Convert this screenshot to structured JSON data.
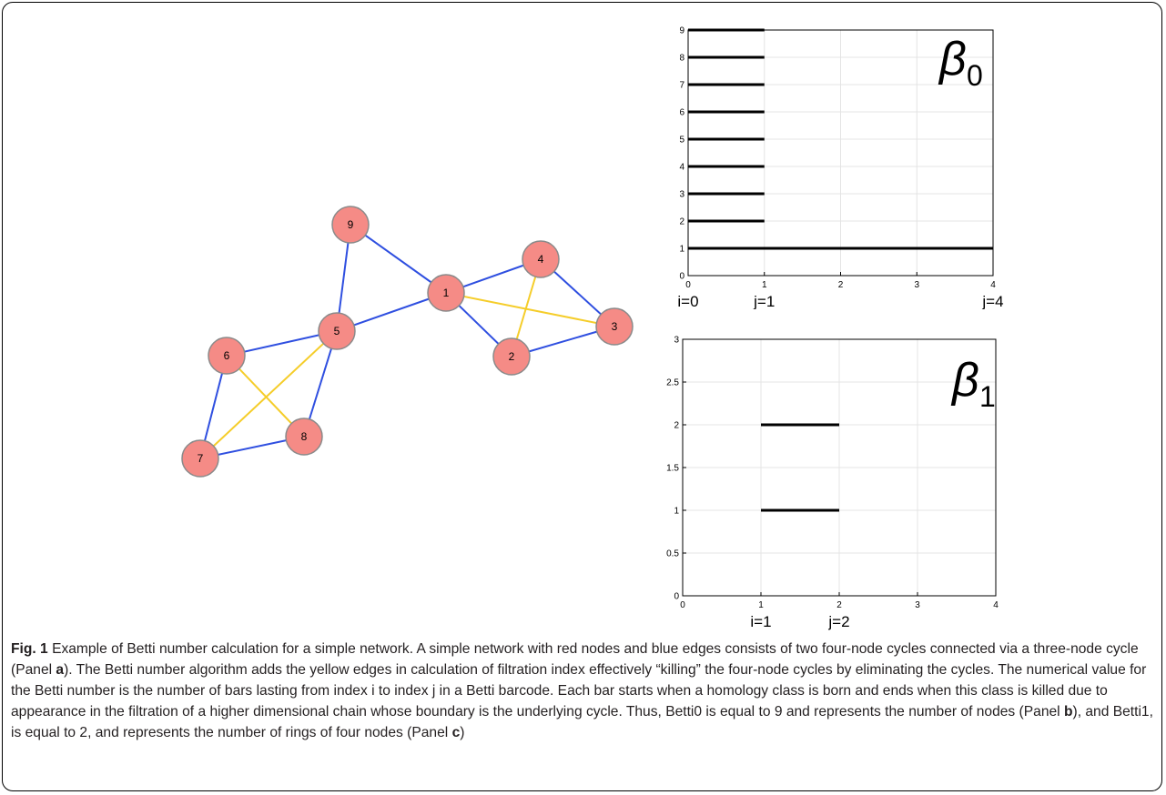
{
  "network": {
    "nodes": [
      {
        "id": "1"
      },
      {
        "id": "2"
      },
      {
        "id": "3"
      },
      {
        "id": "4"
      },
      {
        "id": "5"
      },
      {
        "id": "6"
      },
      {
        "id": "7"
      },
      {
        "id": "8"
      },
      {
        "id": "9"
      }
    ],
    "blue_edges": [
      [
        "9",
        "5"
      ],
      [
        "9",
        "1"
      ],
      [
        "1",
        "5"
      ],
      [
        "1",
        "4"
      ],
      [
        "1",
        "2"
      ],
      [
        "4",
        "3"
      ],
      [
        "2",
        "3"
      ],
      [
        "5",
        "6"
      ],
      [
        "5",
        "8"
      ],
      [
        "6",
        "7"
      ],
      [
        "7",
        "8"
      ]
    ],
    "yellow_edges": [
      [
        "1",
        "3"
      ],
      [
        "4",
        "2"
      ],
      [
        "6",
        "8"
      ],
      [
        "5",
        "7"
      ]
    ],
    "colors": {
      "node_fill": "#f58b86",
      "node_stroke": "#8a8a8a",
      "blue_edge": "#2f4fe0",
      "yellow_edge": "#f5cd2a"
    }
  },
  "chart_data": [
    {
      "type": "bar",
      "subtype": "barcode",
      "symbol": "β",
      "subscript": "0",
      "xlim": [
        0,
        4
      ],
      "ylim": [
        0,
        9
      ],
      "xticks": [
        "0",
        "1",
        "2",
        "3",
        "4"
      ],
      "yticks": [
        "0",
        "1",
        "2",
        "3",
        "4",
        "5",
        "6",
        "7",
        "8",
        "9"
      ],
      "bars": [
        {
          "y": 1,
          "start": 0,
          "end": 4
        },
        {
          "y": 2,
          "start": 0,
          "end": 1
        },
        {
          "y": 3,
          "start": 0,
          "end": 1
        },
        {
          "y": 4,
          "start": 0,
          "end": 1
        },
        {
          "y": 5,
          "start": 0,
          "end": 1
        },
        {
          "y": 6,
          "start": 0,
          "end": 1
        },
        {
          "y": 7,
          "start": 0,
          "end": 1
        },
        {
          "y": 8,
          "start": 0,
          "end": 1
        },
        {
          "y": 9,
          "start": 0,
          "end": 1
        }
      ],
      "index_labels": [
        {
          "x": 0,
          "text": "i=0"
        },
        {
          "x": 1,
          "text": "j=1"
        },
        {
          "x": 4,
          "text": "j=4"
        }
      ],
      "grid": true
    },
    {
      "type": "bar",
      "subtype": "barcode",
      "symbol": "β",
      "subscript": "1",
      "xlim": [
        0,
        4
      ],
      "ylim": [
        0,
        3
      ],
      "xticks": [
        "0",
        "1",
        "2",
        "3",
        "4"
      ],
      "yticks": [
        "0",
        "0.5",
        "1",
        "1.5",
        "2",
        "2.5",
        "3"
      ],
      "bars": [
        {
          "y": 1,
          "start": 1,
          "end": 2
        },
        {
          "y": 2,
          "start": 1,
          "end": 2
        }
      ],
      "index_labels": [
        {
          "x": 1,
          "text": "i=1"
        },
        {
          "x": 2,
          "text": "j=2"
        }
      ],
      "grid": true
    }
  ],
  "caption": {
    "label": "Fig. 1",
    "text_1": " Example of Betti number calculation for a simple network. A simple network with red nodes and blue edges consists of two four-node cycles connected via a three-node cycle (Panel ",
    "panel_a": "a",
    "text_2": "). The Betti number algorithm adds the yellow edges in calculation of filtration index effectively “killing” the four-node cycles by eliminating the cycles. The numerical value for the Betti number is the number of bars lasting from index i to index j in a Betti barcode. Each bar starts when a homology class is born and ends when this class is killed due to appearance in the filtration of a higher dimensional chain whose boundary is the underlying cycle. Thus, Betti0 is equal to 9 and represents the number of nodes (Panel ",
    "panel_b": "b",
    "text_3": "), and Betti1, is equal to 2, and represents the number of rings of four nodes (Panel ",
    "panel_c": "c",
    "text_4": ")"
  }
}
